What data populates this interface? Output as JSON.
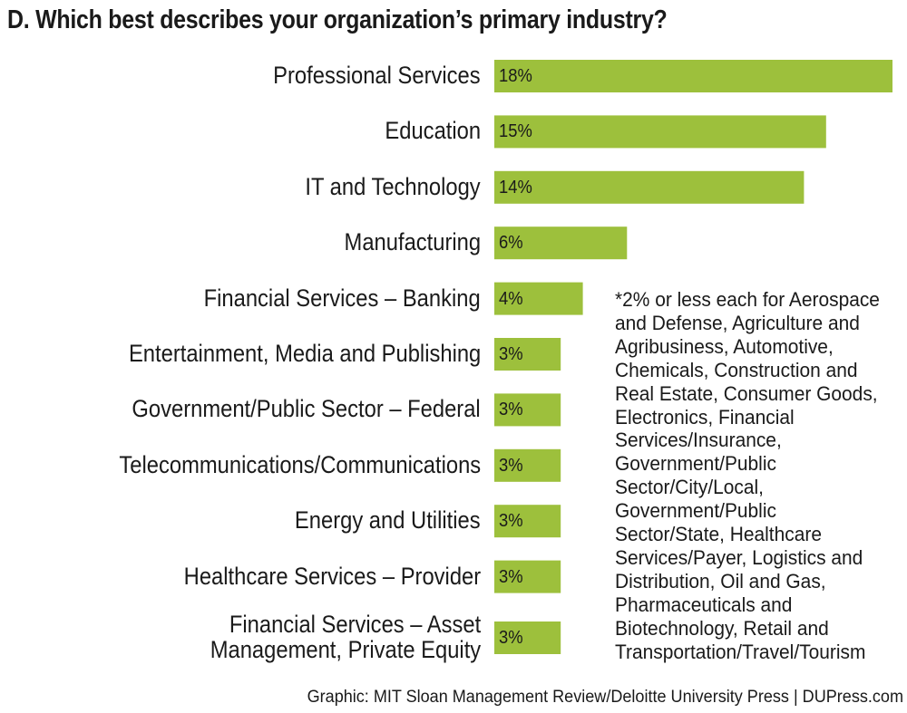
{
  "chart_data": {
    "type": "bar",
    "orientation": "horizontal",
    "title": "D. Which best describes your organization’s primary industry?",
    "categories": [
      "Professional Services",
      "Education",
      "IT and Technology",
      "Manufacturing",
      "Financial Services – Banking",
      "Entertainment, Media and Publishing",
      "Government/Public Sector – Federal",
      "Telecommunications/Communications",
      "Energy and Utilities",
      "Healthcare Services – Provider",
      "Financial Services – Asset\nManagement, Private Equity"
    ],
    "values": [
      18,
      15,
      14,
      6,
      4,
      3,
      3,
      3,
      3,
      3,
      3
    ],
    "value_labels": [
      "18%",
      "15%",
      "14%",
      "6%",
      "4%",
      "3%",
      "3%",
      "3%",
      "3%",
      "3%",
      "3%"
    ],
    "bar_color": "#9dc03c",
    "xlim": [
      0,
      18
    ],
    "grid": false
  },
  "note": "*2% or less each for Aerospace and Defense, Agriculture and Agribusiness, Automotive, Chemicals, Construction and Real Estate, Consumer Goods, Electronics, Financial Services/Insurance, Government/Public Sector/City/Local, Government/Public Sector/State, Healthcare Services/Payer, Logistics and Distribution, Oil and Gas, Pharmaceuticals and Biotechnology, Retail and Transportation/Travel/Tourism",
  "credit": "Graphic: MIT Sloan Management Review/Deloitte University Press  |  DUPress.com"
}
